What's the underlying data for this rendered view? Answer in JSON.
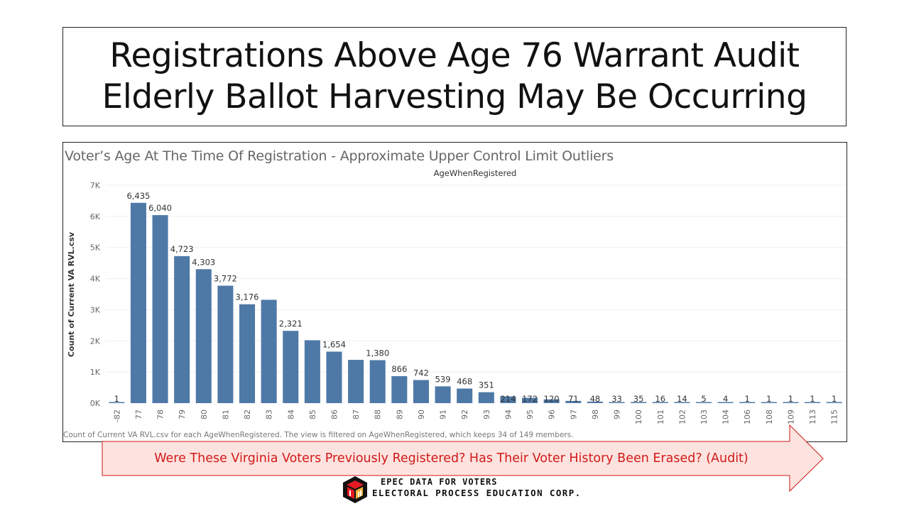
{
  "slide": {
    "title_line1": "Registrations Above Age 76 Warrant Audit",
    "title_line2": "Elderly Ballot Harvesting May Be Occurring"
  },
  "chart_data": {
    "type": "bar",
    "title": "Voter’s Age At The Time Of Registration - Approximate Upper Control Limit Outliers",
    "column_header": "AgeWhenRegistered",
    "ylabel": "Count of Current VA RVL.csv",
    "ylim": [
      0,
      7000
    ],
    "yticks": [
      0,
      1000,
      2000,
      3000,
      4000,
      5000,
      6000,
      7000
    ],
    "ytick_labels": [
      "0K",
      "1K",
      "2K",
      "3K",
      "4K",
      "5K",
      "6K",
      "7K"
    ],
    "categories": [
      "-82",
      "77",
      "78",
      "79",
      "80",
      "81",
      "82",
      "83",
      "84",
      "85",
      "86",
      "87",
      "88",
      "89",
      "90",
      "91",
      "92",
      "93",
      "94",
      "95",
      "96",
      "97",
      "98",
      "99",
      "100",
      "101",
      "102",
      "103",
      "104",
      "106",
      "108",
      "109",
      "113",
      "115"
    ],
    "values": [
      1,
      6435,
      6040,
      4723,
      4303,
      3772,
      3176,
      3320,
      2321,
      2020,
      1654,
      1390,
      1380,
      866,
      742,
      539,
      468,
      351,
      214,
      172,
      120,
      71,
      48,
      33,
      35,
      16,
      14,
      5,
      4,
      1,
      1,
      1,
      1,
      1
    ],
    "data_labels": [
      "1",
      "6,435",
      "6,040",
      "4,723",
      "4,303",
      "3,772",
      "3,176",
      "",
      "2,321",
      "",
      "1,654",
      "",
      "1,380",
      "866",
      "742",
      "539",
      "468",
      "351",
      "214",
      "172",
      "120",
      "71",
      "48",
      "33",
      "35",
      "16",
      "14",
      "5",
      "4",
      "1",
      "1",
      "1",
      "1",
      "1"
    ],
    "bar_color": "#4e79a7",
    "footnote": "Count of Current VA RVL.csv for each AgeWhenRegistered. The view is filtered on AgeWhenRegistered, which keeps 34 of 149 members."
  },
  "callout": {
    "text": "Were These Virginia Voters Previously Registered?  Has Their Voter History Been Erased? (Audit)",
    "fill": "#fde3df",
    "stroke": "#d11a1a"
  },
  "logo": {
    "line1": "EPEC DATA FOR VOTERS",
    "line2": "ELECTORAL PROCESS EDUCATION CORP."
  }
}
